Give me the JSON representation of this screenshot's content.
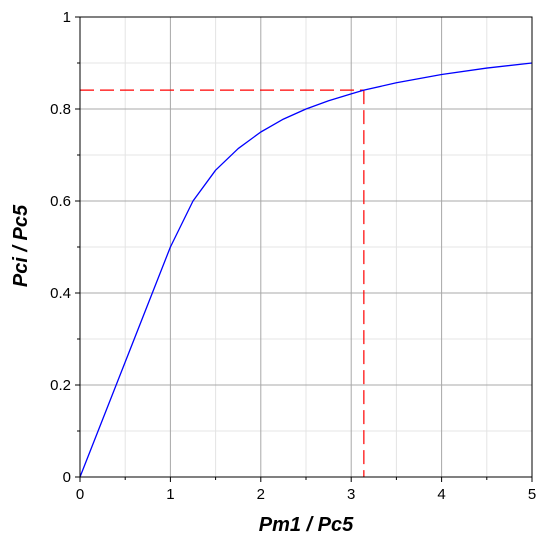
{
  "chart_data": {
    "type": "line",
    "title": "",
    "xlabel": "Pm1 / Pc5",
    "ylabel": "Pci / Pc5",
    "xlim": [
      0,
      5
    ],
    "ylim": [
      0,
      1
    ],
    "x_ticks": [
      "0",
      "1",
      "2",
      "3",
      "4",
      "5"
    ],
    "y_ticks": [
      "0",
      "0.2",
      "0.4",
      "0.6",
      "0.8",
      "1"
    ],
    "grid": true,
    "legend": "none",
    "series": [
      {
        "color": "#0000ff",
        "x": [
          0,
          0.25,
          0.5,
          0.75,
          1.0,
          1.25,
          1.5,
          1.75,
          2.0,
          2.25,
          2.5,
          2.75,
          3.0,
          3.14,
          3.5,
          4.0,
          4.5,
          5.0
        ],
        "y": [
          0,
          0.125,
          0.25,
          0.375,
          0.5,
          0.6,
          0.667,
          0.714,
          0.75,
          0.778,
          0.8,
          0.818,
          0.833,
          0.841,
          0.857,
          0.875,
          0.889,
          0.9
        ]
      }
    ],
    "reference_lines": {
      "color": "#ff0000",
      "style": "dashed",
      "x": 3.14,
      "y": 0.841
    }
  }
}
